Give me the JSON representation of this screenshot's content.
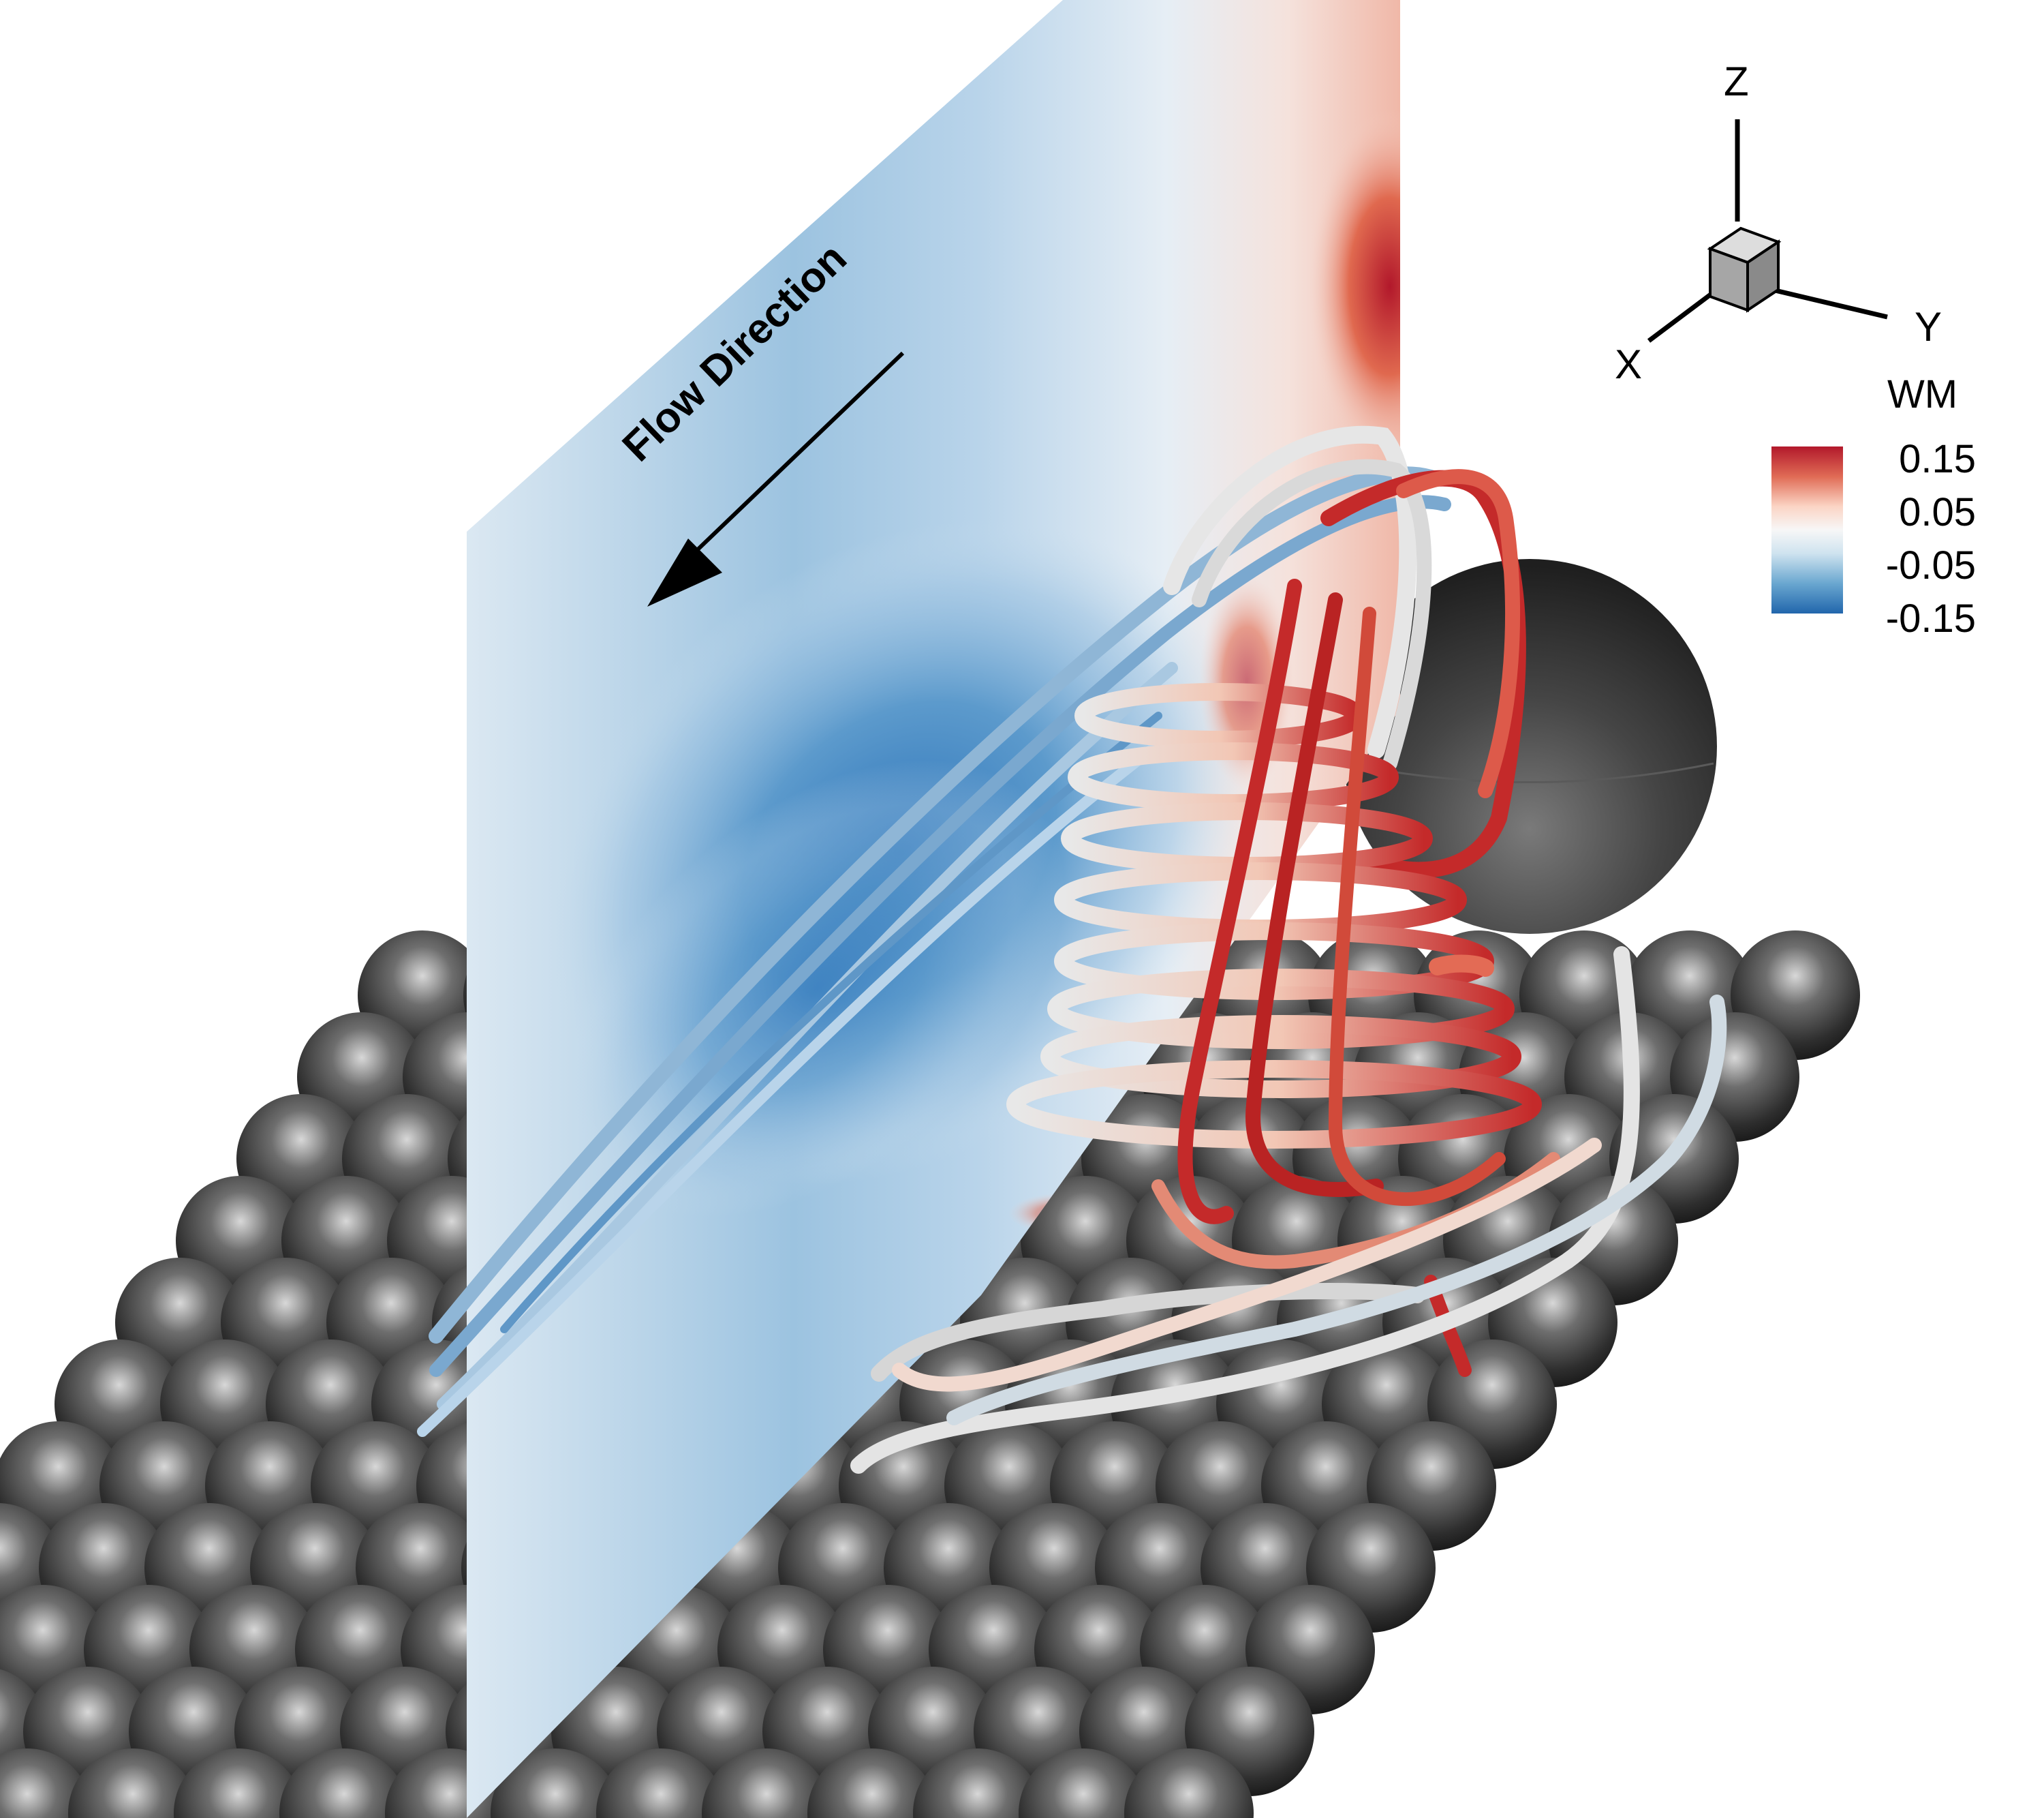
{
  "annotation": {
    "flow_label": "Flow Direction"
  },
  "axes_triad": {
    "z_label": "Z",
    "x_label": "X",
    "y_label": "Y"
  },
  "legend": {
    "title": "WM",
    "ticks": [
      "0.15",
      "0.05",
      "-0.05",
      "-0.15"
    ],
    "colors": [
      "#b2182b",
      "#ef8a62",
      "#fddbc7",
      "#f7f7f7",
      "#d1e5f0",
      "#67a9cf",
      "#2166ac"
    ]
  },
  "colors": {
    "sphere_dark": "#2a2a2a",
    "sphere_light": "#bdbdbd",
    "plane_blue": "#c6dcec",
    "plane_deep_blue": "#3a7fbf",
    "plane_red": "#c0392b",
    "tube_white": "#e8e8e8",
    "tube_red": "#c42a2a",
    "tube_blue": "#8fb6d6"
  }
}
